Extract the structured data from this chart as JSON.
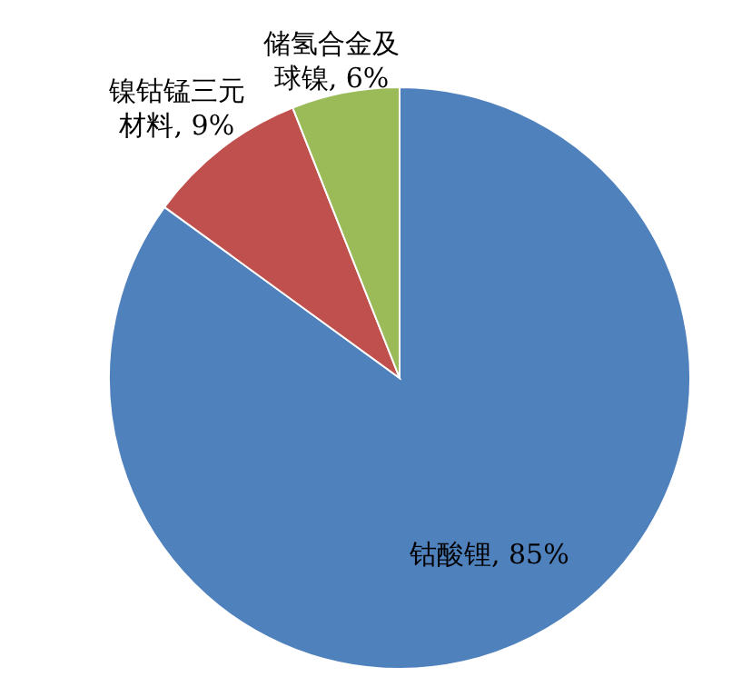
{
  "chart_data": {
    "type": "pie",
    "categories": [
      "钴酸锂",
      "镍钴锰三元材料",
      "储氢合金及球镍"
    ],
    "values": [
      85,
      9,
      6
    ],
    "colors": [
      "#4f81bd",
      "#c0504d",
      "#9bbb59"
    ],
    "value_labels": [
      "85%",
      "9%",
      "6%"
    ]
  }
}
